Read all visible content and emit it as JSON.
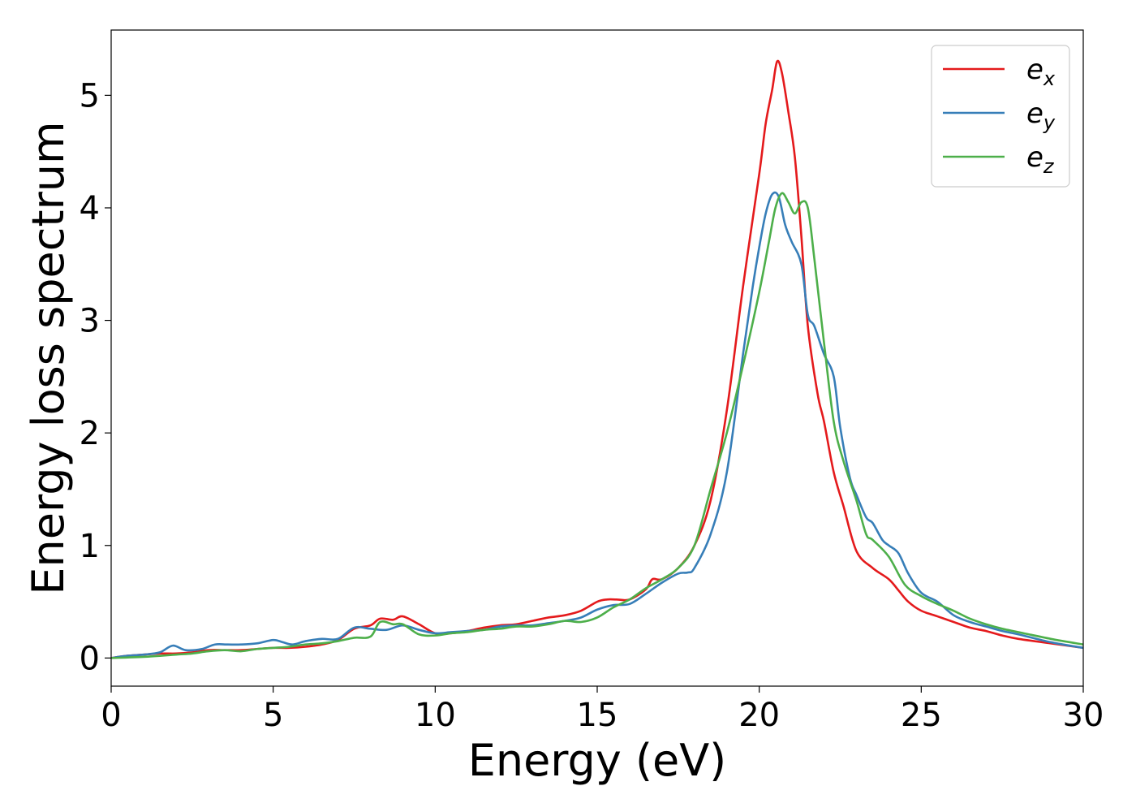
{
  "chart_data": {
    "type": "line",
    "title": "",
    "xlabel": "Energy (eV)",
    "ylabel": "Energy loss spectrum",
    "xlim": [
      0,
      30
    ],
    "ylim": [
      -0.25,
      5.58
    ],
    "xticks": [
      0,
      5,
      10,
      15,
      20,
      25,
      30
    ],
    "yticks": [
      0,
      1,
      2,
      3,
      4,
      5
    ],
    "grid": false,
    "legend_position": "top-right",
    "series": [
      {
        "name": "e_x",
        "label_main": "e",
        "label_sub": "x",
        "color": "#e41a1c",
        "x": [
          0,
          0.5,
          1,
          1.5,
          2,
          2.5,
          3,
          3.5,
          4,
          4.5,
          5,
          5.5,
          6,
          6.5,
          7,
          7.5,
          8,
          8.3,
          8.7,
          9,
          9.5,
          10,
          10.5,
          11,
          11.5,
          12,
          12.5,
          13,
          13.5,
          14,
          14.5,
          15,
          15.3,
          15.6,
          16,
          16.5,
          16.7,
          17,
          17.5,
          18,
          18.5,
          19,
          19.5,
          20,
          20.2,
          20.4,
          20.55,
          20.7,
          20.9,
          21.1,
          21.3,
          21.5,
          21.8,
          22,
          22.3,
          22.6,
          23,
          23.5,
          24,
          24.3,
          24.6,
          25,
          25.5,
          26,
          26.5,
          27,
          27.5,
          28,
          29,
          30
        ],
        "y": [
          0.0,
          0.02,
          0.03,
          0.04,
          0.04,
          0.05,
          0.07,
          0.07,
          0.07,
          0.08,
          0.09,
          0.09,
          0.1,
          0.12,
          0.16,
          0.26,
          0.29,
          0.35,
          0.34,
          0.37,
          0.3,
          0.22,
          0.22,
          0.24,
          0.27,
          0.29,
          0.3,
          0.33,
          0.36,
          0.38,
          0.42,
          0.5,
          0.52,
          0.52,
          0.52,
          0.61,
          0.7,
          0.7,
          0.8,
          1.0,
          1.4,
          2.2,
          3.3,
          4.3,
          4.75,
          5.05,
          5.3,
          5.2,
          4.85,
          4.45,
          3.75,
          2.95,
          2.35,
          2.1,
          1.65,
          1.35,
          0.95,
          0.8,
          0.7,
          0.6,
          0.5,
          0.42,
          0.37,
          0.32,
          0.27,
          0.24,
          0.2,
          0.17,
          0.13,
          0.09
        ]
      },
      {
        "name": "e_y",
        "label_main": "e",
        "label_sub": "y",
        "color": "#377eb8",
        "x": [
          0,
          0.5,
          1,
          1.5,
          1.9,
          2.3,
          2.8,
          3.2,
          3.6,
          4,
          4.5,
          5,
          5.3,
          5.6,
          6,
          6.5,
          7,
          7.5,
          8,
          8.5,
          9,
          9.5,
          10,
          10.5,
          11,
          11.5,
          12,
          12.5,
          13,
          13.5,
          14,
          14.5,
          15,
          15.5,
          16,
          16.5,
          17,
          17.5,
          17.8,
          18,
          18.5,
          19,
          19.5,
          19.8,
          20,
          20.2,
          20.4,
          20.6,
          20.8,
          21,
          21.3,
          21.5,
          21.7,
          22,
          22.3,
          22.5,
          22.8,
          23,
          23.3,
          23.5,
          23.8,
          24,
          24.3,
          24.6,
          25,
          25.5,
          26,
          26.5,
          27,
          27.5,
          28,
          29,
          30
        ],
        "y": [
          0.0,
          0.02,
          0.03,
          0.05,
          0.11,
          0.07,
          0.08,
          0.12,
          0.12,
          0.12,
          0.13,
          0.16,
          0.14,
          0.12,
          0.15,
          0.17,
          0.17,
          0.27,
          0.26,
          0.25,
          0.29,
          0.25,
          0.22,
          0.23,
          0.24,
          0.25,
          0.28,
          0.29,
          0.29,
          0.31,
          0.33,
          0.36,
          0.43,
          0.47,
          0.48,
          0.57,
          0.67,
          0.75,
          0.76,
          0.8,
          1.1,
          1.65,
          2.7,
          3.3,
          3.65,
          3.95,
          4.12,
          4.1,
          3.85,
          3.7,
          3.5,
          3.05,
          2.95,
          2.7,
          2.5,
          2.05,
          1.6,
          1.45,
          1.25,
          1.2,
          1.05,
          1.0,
          0.93,
          0.75,
          0.58,
          0.5,
          0.38,
          0.32,
          0.28,
          0.24,
          0.21,
          0.14,
          0.09
        ]
      },
      {
        "name": "e_z",
        "label_main": "e",
        "label_sub": "z",
        "color": "#4daf4a",
        "x": [
          0,
          1,
          2,
          2.5,
          3,
          3.5,
          4,
          4.5,
          5,
          5.5,
          6,
          6.5,
          7,
          7.5,
          8,
          8.3,
          8.7,
          9,
          9.5,
          10,
          10.5,
          11,
          11.5,
          12,
          12.5,
          13,
          13.5,
          14,
          14.5,
          15,
          15.5,
          16,
          16.5,
          17,
          17.5,
          18,
          18.5,
          19,
          19.5,
          20,
          20.3,
          20.5,
          20.7,
          20.9,
          21.1,
          21.3,
          21.5,
          21.7,
          22,
          22.3,
          22.6,
          23,
          23.3,
          23.5,
          24,
          24.5,
          25,
          25.5,
          26,
          26.5,
          27,
          27.5,
          28,
          29,
          30
        ],
        "y": [
          0.0,
          0.01,
          0.03,
          0.04,
          0.06,
          0.07,
          0.06,
          0.08,
          0.09,
          0.1,
          0.12,
          0.13,
          0.15,
          0.18,
          0.19,
          0.32,
          0.3,
          0.3,
          0.21,
          0.2,
          0.22,
          0.23,
          0.25,
          0.26,
          0.28,
          0.28,
          0.3,
          0.33,
          0.32,
          0.36,
          0.45,
          0.52,
          0.62,
          0.7,
          0.8,
          1.0,
          1.5,
          2.0,
          2.6,
          3.25,
          3.7,
          4.0,
          4.13,
          4.05,
          3.95,
          4.05,
          4.0,
          3.55,
          2.8,
          2.1,
          1.75,
          1.4,
          1.1,
          1.05,
          0.9,
          0.65,
          0.55,
          0.48,
          0.42,
          0.35,
          0.3,
          0.26,
          0.23,
          0.17,
          0.12
        ]
      }
    ]
  }
}
